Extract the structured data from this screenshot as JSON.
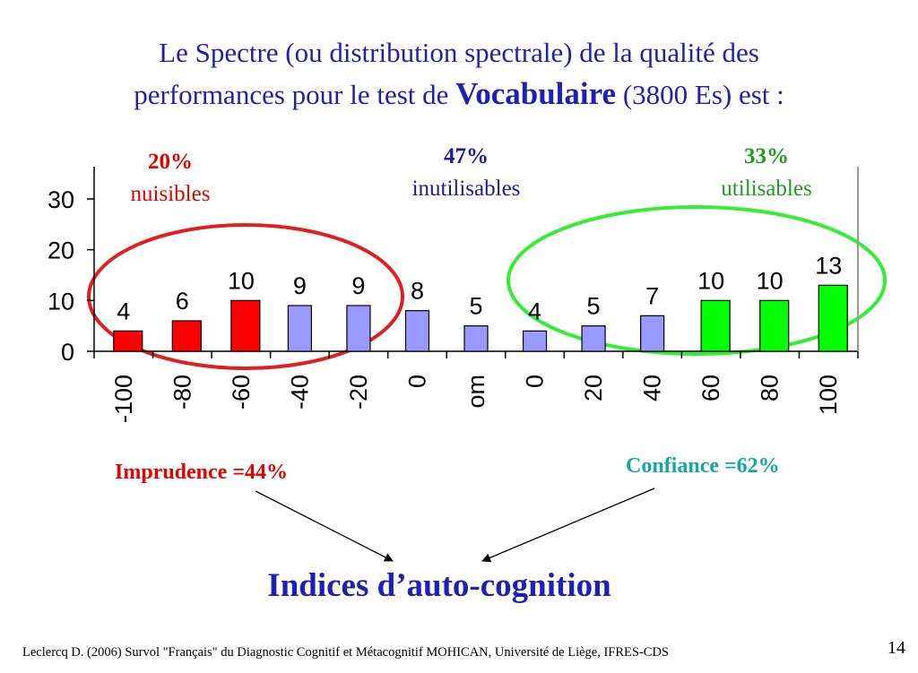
{
  "title": {
    "line1": "Le Spectre (ou distribution spectrale) de la qualité des",
    "line2_pre": "performances pour le test de",
    "line2_bold": "Vocabulaire",
    "line2_post": "(3800 Es) est :"
  },
  "groups": {
    "harmful": {
      "percent": "20%",
      "label": "nuisibles",
      "color": "#e60000"
    },
    "useless": {
      "percent": "47%",
      "label": "inutilisables",
      "color": "#1a1a9a"
    },
    "usable": {
      "percent": "33%",
      "label": "utilisables",
      "color": "#1e9a1e"
    }
  },
  "indices": {
    "imprudence": "Imprudence =44%",
    "confiance": "Confiance =62%",
    "heading": "Indices d’auto-cognition"
  },
  "footer": "Leclercq D. (2006) Survol \"Français\" du Diagnostic Cognitif et Métacognitif MOHICAN,  Université de Liège, IFRES-CDS",
  "page_number": "14",
  "colors": {
    "bar_default": "#9999ff",
    "bar_harmful": "#ff0000",
    "bar_usable": "#00ff00",
    "circle_red": "#e02020",
    "circle_green": "#33ee33"
  },
  "chart_data": {
    "type": "bar",
    "categories": [
      "-100",
      "-80",
      "-60",
      "-40",
      "-20",
      "0",
      "om",
      "0",
      "20",
      "40",
      "60",
      "80",
      "100"
    ],
    "values": [
      4,
      6,
      10,
      9,
      9,
      8,
      5,
      4,
      5,
      7,
      10,
      10,
      13
    ],
    "groups": [
      "harmful",
      "harmful",
      "harmful",
      "useless",
      "useless",
      "useless",
      "useless",
      "useless",
      "useless",
      "useless",
      "usable",
      "usable",
      "usable"
    ],
    "y_ticks": [
      0,
      10,
      20,
      30
    ],
    "ylim": [
      0,
      36
    ],
    "grid": false,
    "xlabel": "",
    "ylabel": ""
  }
}
